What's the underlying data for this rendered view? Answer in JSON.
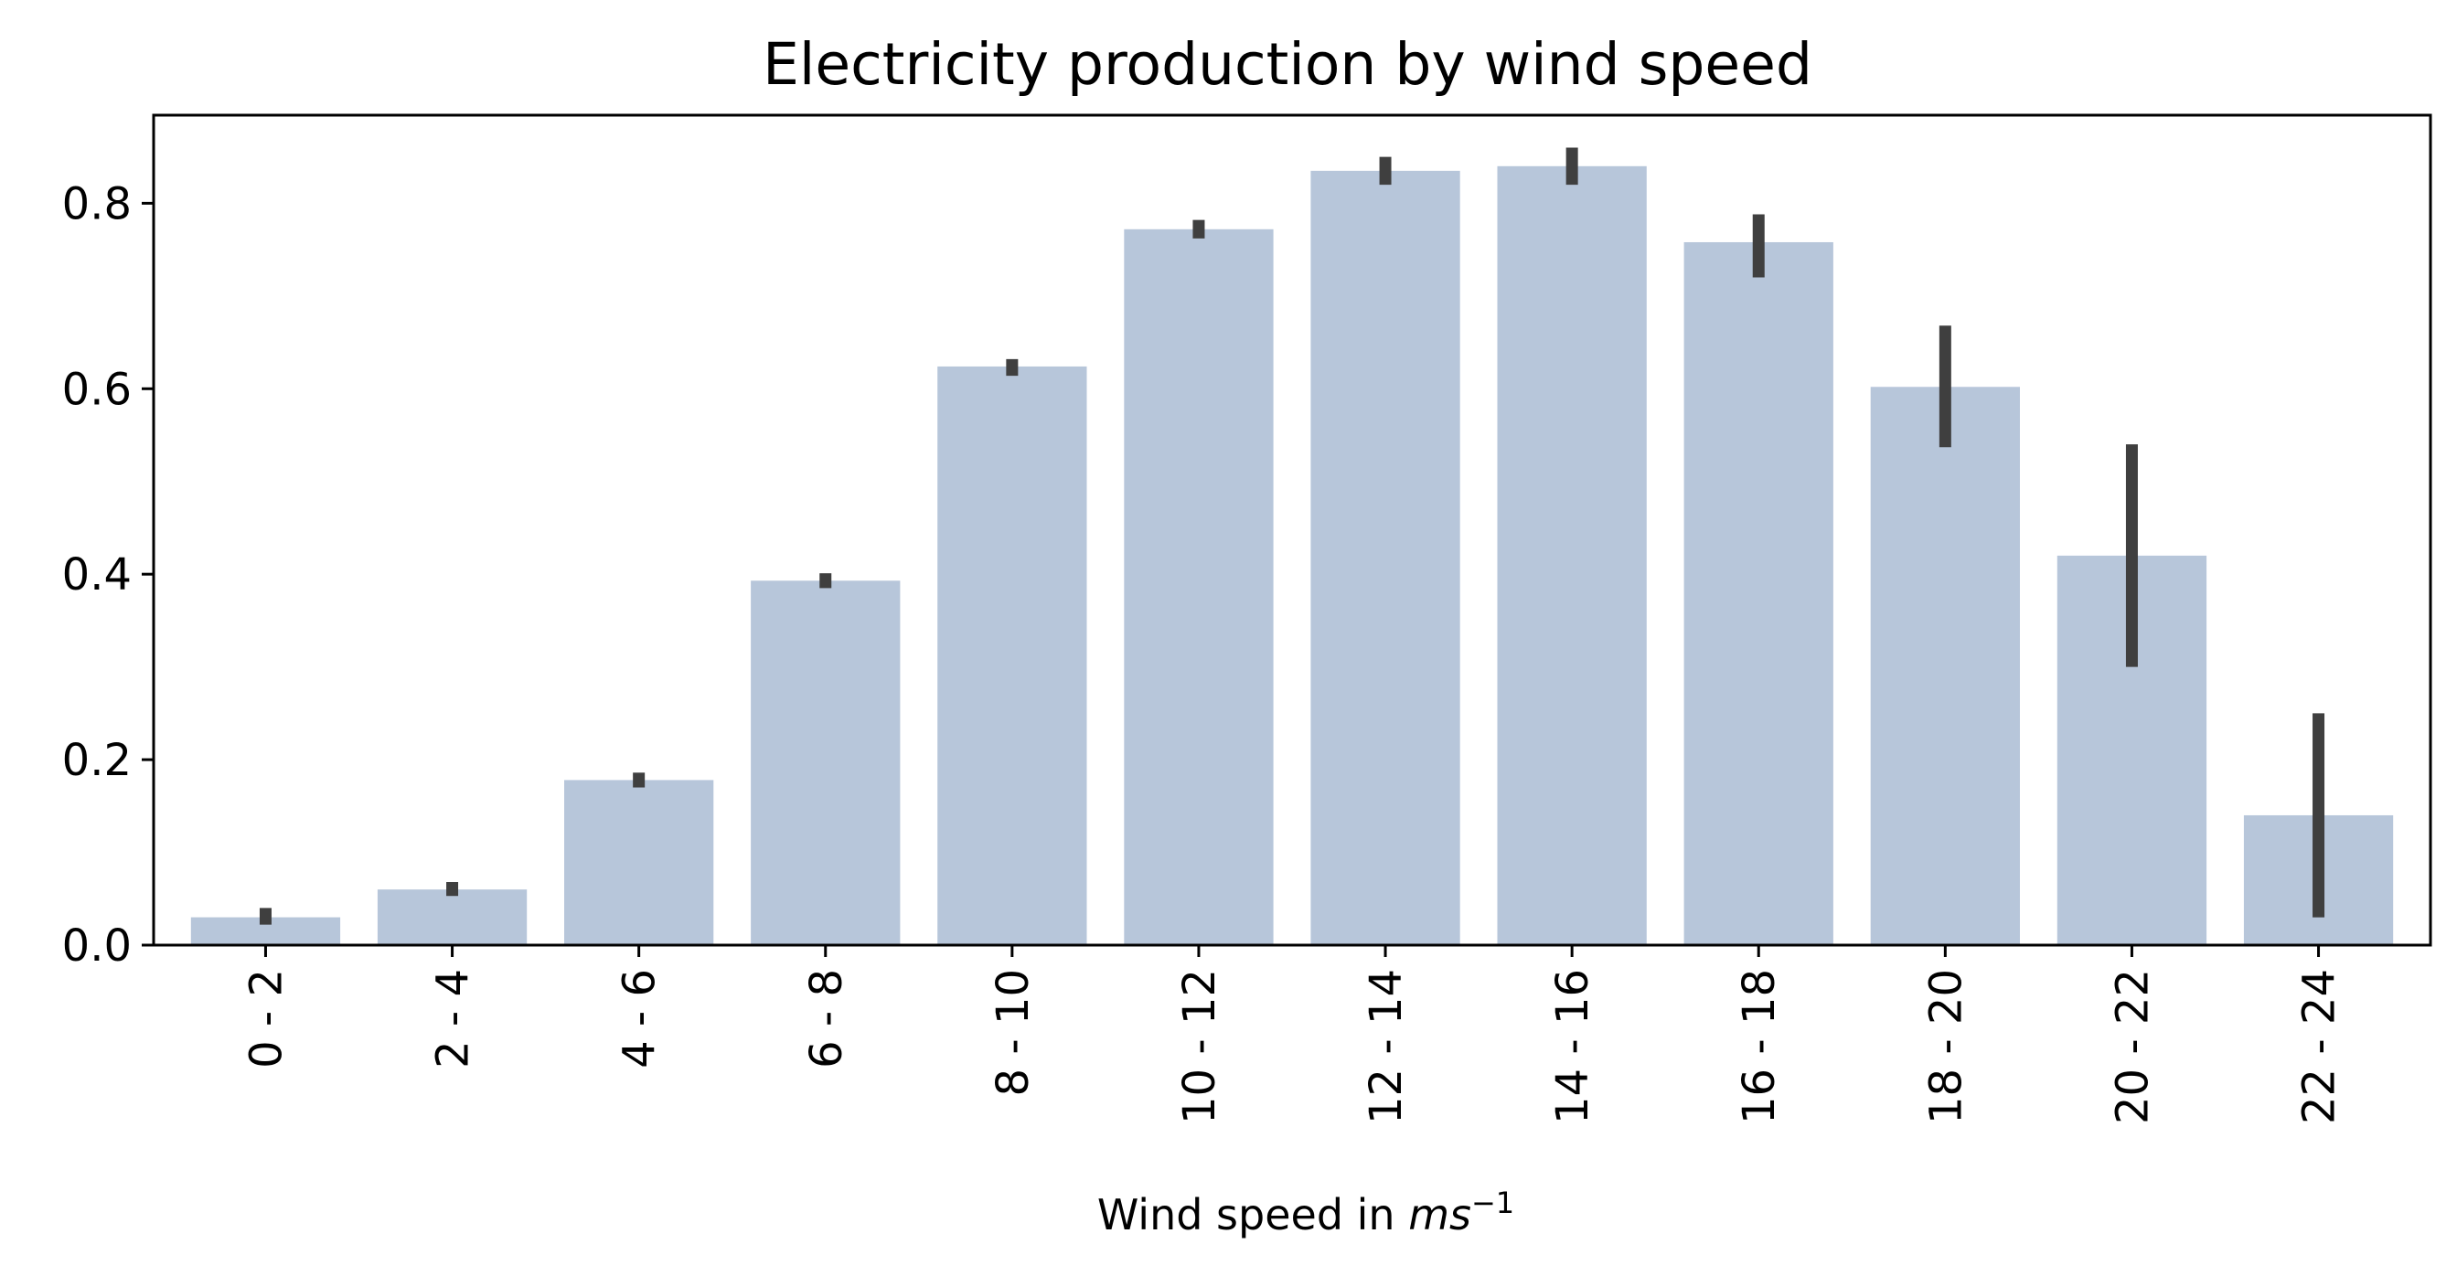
{
  "chart_data": {
    "type": "bar",
    "title": "Electricity production by wind speed",
    "xlabel": "Wind speed in ",
    "xlabel_math": "ms",
    "xlabel_exp": "−1",
    "ylabel": "",
    "categories": [
      "0 - 2",
      "2 - 4",
      "4 - 6",
      "6 - 8",
      "8 - 10",
      "10 - 12",
      "12 - 14",
      "14 - 16",
      "16 - 18",
      "18 - 20",
      "20 - 22",
      "22 - 24"
    ],
    "values": [
      0.03,
      0.06,
      0.178,
      0.393,
      0.624,
      0.772,
      0.835,
      0.84,
      0.758,
      0.602,
      0.42,
      0.14
    ],
    "error_low": [
      0.022,
      0.053,
      0.17,
      0.385,
      0.614,
      0.762,
      0.82,
      0.82,
      0.72,
      0.537,
      0.3,
      0.03
    ],
    "error_high": [
      0.04,
      0.068,
      0.186,
      0.401,
      0.632,
      0.782,
      0.85,
      0.86,
      0.788,
      0.668,
      0.54,
      0.25
    ],
    "ylim": [
      0,
      0.895
    ],
    "yticks": [
      "0.0",
      "0.2",
      "0.4",
      "0.6",
      "0.8"
    ],
    "ytick_values": [
      0,
      0.2,
      0.4,
      0.6,
      0.8
    ],
    "grid": false,
    "legend": "none",
    "bar_color": "#b7c6da",
    "error_color": "#3f3f3f"
  }
}
